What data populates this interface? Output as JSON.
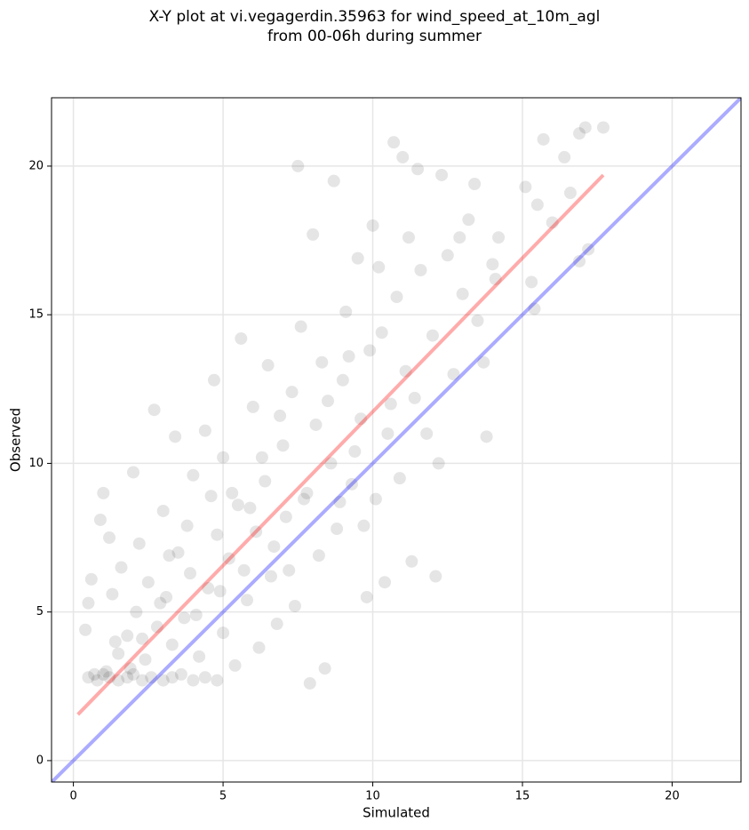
{
  "chart_data": {
    "type": "scatter",
    "title": "X-Y plot at vi.vegagerdin.35963 for wind_speed_at_10m_agl\nfrom 00-06h during summer",
    "xlabel": "Simulated",
    "ylabel": "Observed",
    "xlim": [
      -0.73,
      22.3
    ],
    "ylim": [
      -0.72,
      22.3
    ],
    "xticks": [
      0,
      5,
      10,
      15,
      20
    ],
    "yticks": [
      0,
      5,
      10,
      15,
      20
    ],
    "grid": true,
    "series": [
      {
        "color": "#000000",
        "alpha": 0.1,
        "x": [
          0.5,
          0.8,
          1.0,
          1.2,
          1.5,
          1.8,
          2.0,
          2.3,
          2.6,
          3.0,
          3.3,
          3.6,
          4.0,
          4.4,
          4.8,
          0.4,
          0.5,
          0.6,
          0.9,
          1.0,
          1.2,
          1.3,
          1.5,
          1.6,
          1.8,
          2.0,
          2.1,
          2.2,
          2.4,
          2.5,
          2.7,
          2.8,
          3.0,
          3.1,
          3.3,
          3.4,
          3.5,
          3.7,
          3.9,
          4.0,
          4.2,
          4.4,
          4.5,
          4.7,
          4.8,
          5.0,
          5.0,
          5.2,
          5.4,
          5.5,
          5.6,
          5.8,
          6.0,
          6.1,
          6.2,
          6.4,
          6.5,
          6.6,
          6.8,
          7.0,
          7.1,
          7.3,
          7.4,
          7.5,
          7.6,
          7.8,
          7.9,
          8.0,
          8.1,
          8.2,
          8.3,
          8.4,
          8.6,
          8.7,
          8.8,
          9.0,
          9.1,
          9.3,
          9.5,
          9.6,
          9.8,
          9.9,
          10.0,
          10.1,
          10.3,
          10.4,
          10.6,
          10.7,
          10.8,
          10.9,
          11.0,
          11.1,
          11.3,
          11.5,
          11.6,
          11.8,
          12.0,
          12.1,
          12.2,
          12.3,
          12.5,
          12.7,
          12.9,
          13.0,
          13.2,
          13.4,
          13.5,
          13.7,
          13.8,
          14.0,
          14.2,
          15.1,
          15.3,
          15.5,
          15.7,
          16.0,
          16.4,
          16.6,
          16.9,
          17.1,
          17.2,
          17.7,
          16.9,
          15.4,
          14.1,
          11.2,
          10.2,
          9.4,
          9.7,
          8.9,
          6.9,
          6.3,
          5.9,
          5.3,
          4.6,
          3.8,
          3.2,
          2.9,
          2.3,
          1.9,
          1.4,
          1.1,
          0.7,
          4.1,
          4.9,
          5.7,
          6.7,
          7.2,
          7.7,
          8.5,
          9.2,
          10.5,
          11.4
        ],
        "values": [
          2.8,
          2.7,
          2.9,
          2.8,
          2.7,
          2.8,
          2.9,
          2.7,
          2.8,
          2.7,
          2.8,
          2.9,
          2.7,
          2.8,
          2.7,
          4.4,
          5.3,
          6.1,
          8.1,
          9.0,
          7.5,
          5.6,
          3.6,
          6.5,
          4.2,
          9.7,
          5.0,
          7.3,
          3.4,
          6.0,
          11.8,
          4.5,
          8.4,
          5.5,
          3.9,
          10.9,
          7.0,
          4.8,
          6.3,
          9.6,
          3.5,
          11.1,
          5.8,
          12.8,
          7.6,
          4.3,
          10.2,
          6.8,
          3.2,
          8.6,
          14.2,
          5.4,
          11.9,
          7.7,
          3.8,
          9.4,
          13.3,
          6.2,
          4.6,
          10.6,
          8.2,
          12.4,
          5.2,
          20.0,
          14.6,
          9.0,
          2.6,
          17.7,
          11.3,
          6.9,
          13.4,
          3.1,
          10.0,
          19.5,
          7.8,
          12.8,
          15.1,
          9.3,
          16.9,
          11.5,
          5.5,
          13.8,
          18.0,
          8.8,
          14.4,
          6.0,
          12.0,
          20.8,
          15.6,
          9.5,
          20.3,
          13.1,
          6.7,
          19.9,
          16.5,
          11.0,
          14.3,
          6.2,
          10.0,
          19.7,
          17.0,
          13.0,
          17.6,
          15.7,
          18.2,
          19.4,
          14.8,
          13.4,
          10.9,
          16.7,
          17.6,
          19.3,
          16.1,
          18.7,
          20.9,
          18.1,
          20.3,
          19.1,
          21.1,
          21.3,
          17.2,
          21.3,
          16.8,
          15.2,
          16.2,
          17.6,
          16.6,
          10.4,
          7.9,
          8.7,
          11.6,
          10.2,
          8.5,
          9.0,
          8.9,
          7.9,
          6.9,
          5.3,
          4.1,
          3.1,
          4.0,
          3.0,
          2.9,
          4.9,
          5.7,
          6.4,
          7.2,
          6.4,
          8.8,
          12.1,
          13.6,
          11.0,
          12.2
        ]
      }
    ],
    "lines": [
      {
        "color": "#ff0000",
        "alpha": 0.33,
        "x": [
          0.15,
          17.7
        ],
        "y": [
          1.55,
          19.7
        ]
      },
      {
        "color": "#0000ff",
        "alpha": 0.33,
        "x": [
          -0.73,
          22.3
        ],
        "y": [
          -0.73,
          22.3
        ]
      }
    ]
  }
}
